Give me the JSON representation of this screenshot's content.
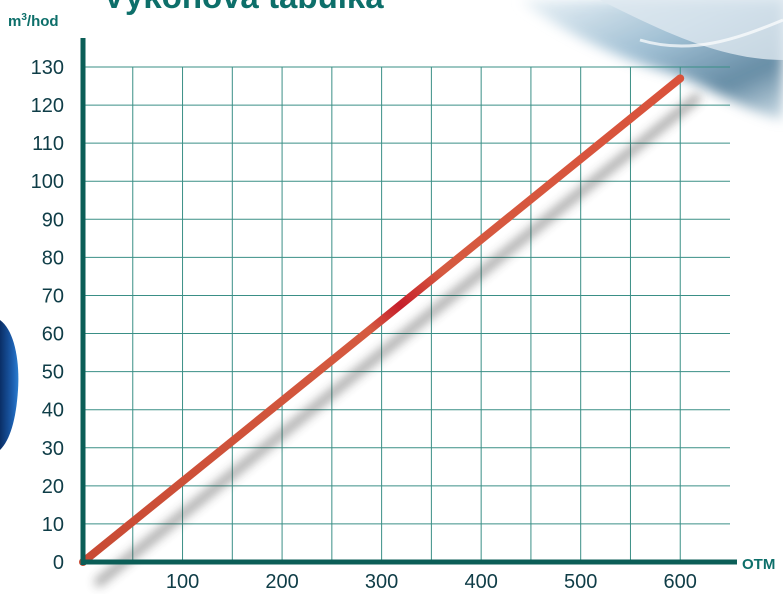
{
  "chart_data": {
    "type": "line",
    "title": "Výkonová tabulka",
    "xlabel": "OTM",
    "ylabel_base": "m",
    "ylabel_sup": "3",
    "ylabel_rest": "/hod",
    "x_ticks": [
      100,
      200,
      300,
      400,
      500,
      600
    ],
    "y_ticks": [
      0,
      10,
      20,
      30,
      40,
      50,
      60,
      70,
      80,
      90,
      100,
      110,
      120,
      130
    ],
    "xlim": [
      0,
      650
    ],
    "ylim": [
      0,
      130
    ],
    "grid": true,
    "series": [
      {
        "x": [
          0,
          600
        ],
        "y": [
          0,
          127
        ]
      }
    ]
  },
  "colors": {
    "axis": "#0b5e57",
    "grid": "#3a8f86",
    "line": "#d1503a",
    "line_mid": "#c8202a",
    "text": "#0f3d47",
    "accent": "#0d6f6a"
  }
}
